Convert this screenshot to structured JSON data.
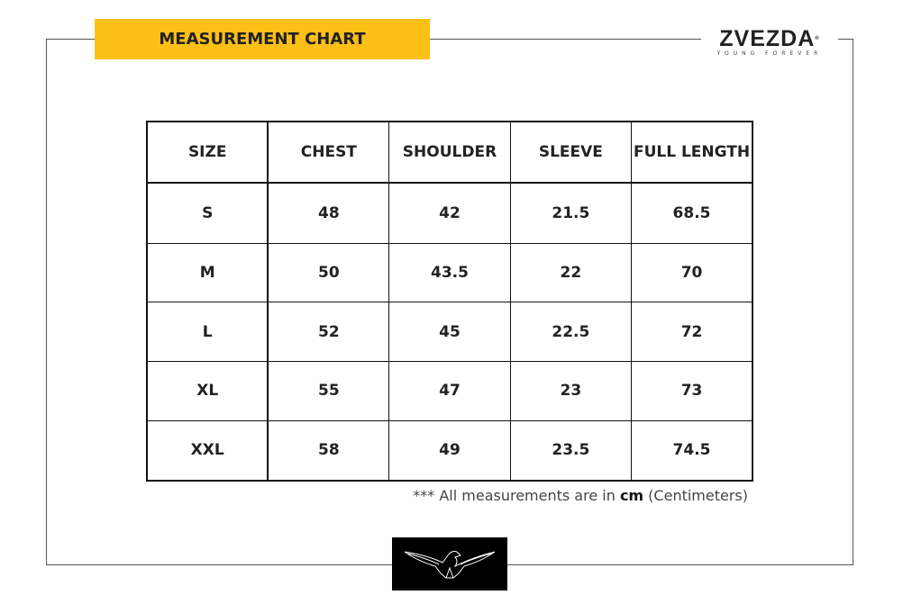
{
  "title": "MEASUREMENT CHART",
  "brand": {
    "name": "ZVEZDA",
    "tagline": "YOUNG FOREVER",
    "registered": "®"
  },
  "table": {
    "headers": [
      "SIZE",
      "CHEST",
      "SHOULDER",
      "SLEEVE",
      "FULL LENGTH"
    ],
    "rows": [
      [
        "S",
        "48",
        "42",
        "21.5",
        "68.5"
      ],
      [
        "M",
        "50",
        "43.5",
        "22",
        "70"
      ],
      [
        "L",
        "52",
        "45",
        "22.5",
        "72"
      ],
      [
        "XL",
        "55",
        "47",
        "23",
        "73"
      ],
      [
        "XXL",
        "58",
        "49",
        "23.5",
        "74.5"
      ]
    ]
  },
  "note": {
    "prefix": "*** All measurements are in ",
    "unit": "cm",
    "suffix": " (Centimeters)"
  },
  "colors": {
    "banner": "#fbbf16"
  }
}
